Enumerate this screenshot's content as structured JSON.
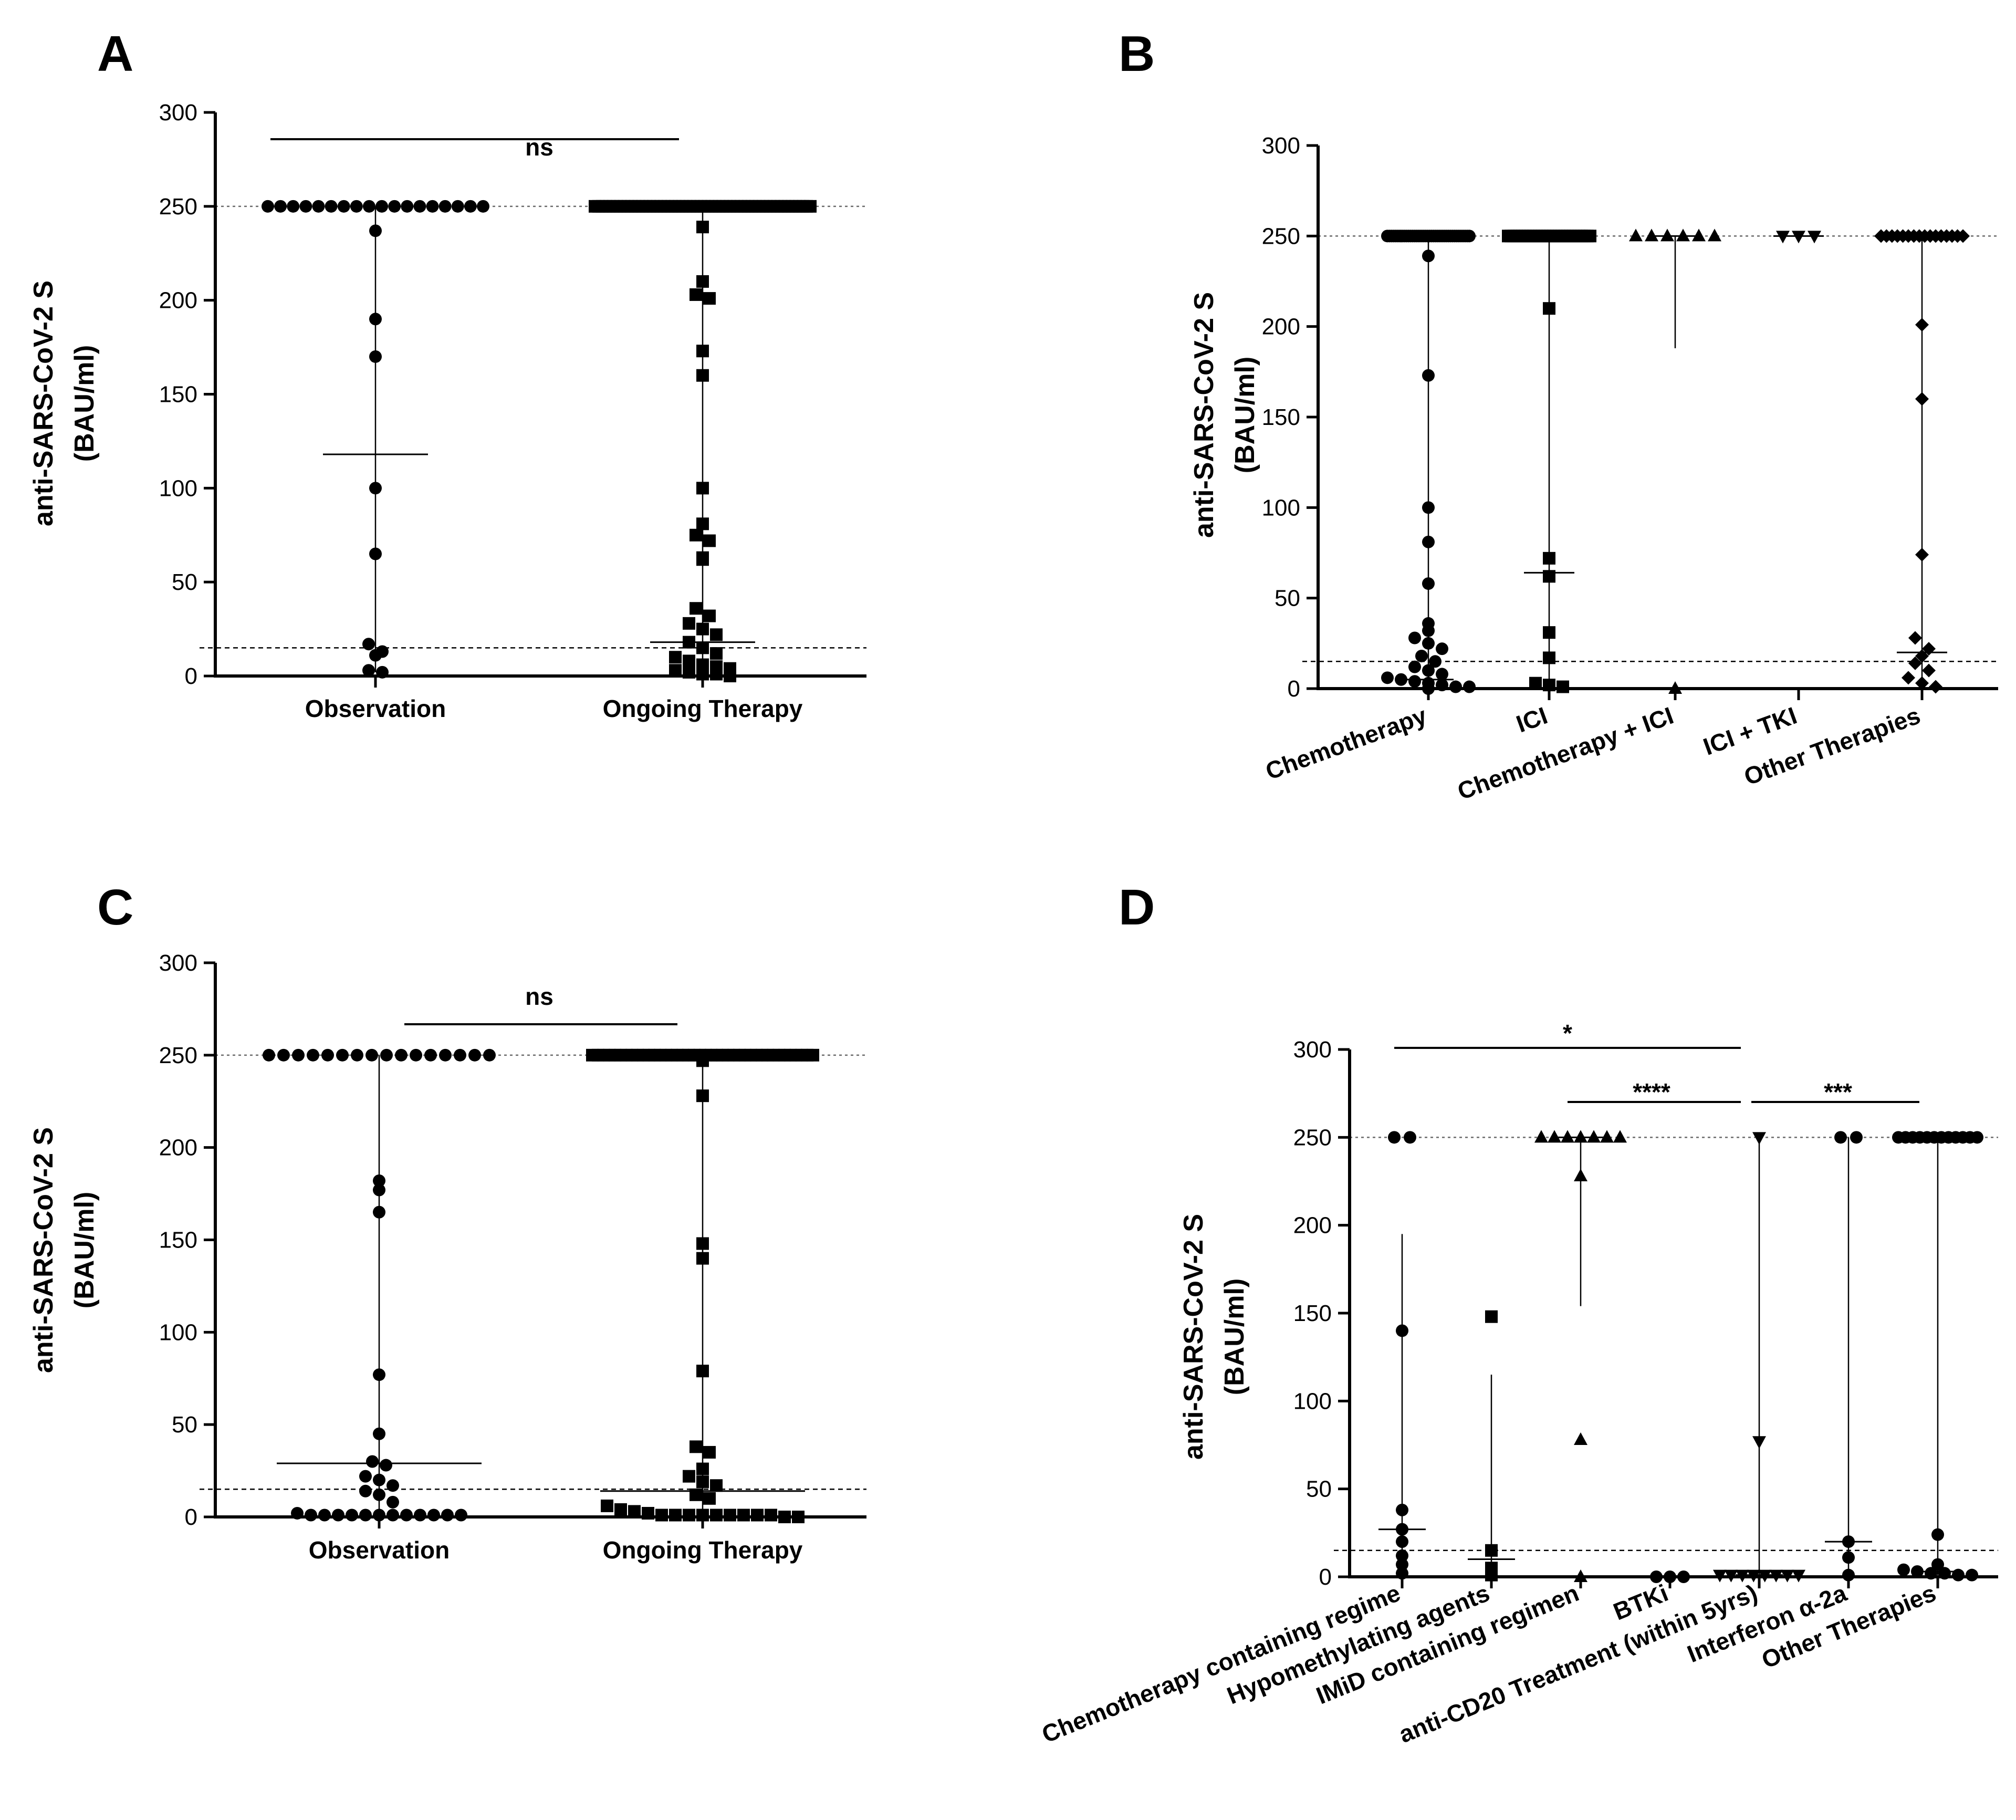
{
  "figure": {
    "colors": {
      "ink": "#000000",
      "refline": "#6a6a6a",
      "background": "#ffffff"
    }
  },
  "chart_data": [
    {
      "panel": "A",
      "type": "scatter",
      "ylabel_line1": "anti-SARS-CoV-2 S",
      "ylabel_line2": "(BAU/ml)",
      "ylim": [
        0,
        300
      ],
      "yticks": [
        0,
        50,
        100,
        150,
        200,
        250,
        300
      ],
      "ref_upper": 250,
      "ref_lower": 15,
      "categories": [
        "Observation",
        "Ongoing Therapy"
      ],
      "series": [
        {
          "name": "Observation",
          "marker": "circle",
          "values_at_250": 18,
          "other_values": [
            237,
            190,
            170,
            100,
            65,
            17,
            13,
            11,
            3,
            2
          ],
          "median": 118,
          "whisker": [
            2,
            250
          ]
        },
        {
          "name": "Ongoing Therapy",
          "marker": "square",
          "values_at_250": 60,
          "other_values": [
            239,
            210,
            203,
            201,
            173,
            160,
            100,
            81,
            75,
            72,
            63,
            62,
            36,
            32,
            28,
            25,
            22,
            18,
            15,
            12,
            10,
            8,
            6,
            5,
            4,
            3,
            2,
            1,
            1,
            0
          ],
          "median": 18,
          "whisker": [
            0,
            250
          ]
        }
      ],
      "significance": [
        {
          "from": "Observation",
          "to": "Ongoing Therapy",
          "label": "ns",
          "y": 268
        }
      ]
    },
    {
      "panel": "B",
      "type": "scatter",
      "ylabel_line1": "anti-SARS-CoV-2 S",
      "ylabel_line2": "(BAU/ml)",
      "ylim": [
        0,
        300
      ],
      "yticks": [
        0,
        50,
        100,
        150,
        200,
        250,
        300
      ],
      "ref_upper": 250,
      "ref_lower": 15,
      "categories": [
        "Chemotherapy",
        "ICI",
        "Chemotherapy + ICI",
        "ICI + TKI",
        "Other Therapies"
      ],
      "series": [
        {
          "name": "Chemotherapy",
          "marker": "circle",
          "values_at_250": 40,
          "other_values": [
            239,
            173,
            100,
            81,
            58,
            36,
            32,
            28,
            25,
            22,
            18,
            15,
            12,
            10,
            8,
            6,
            5,
            4,
            3,
            2,
            1,
            1,
            0
          ],
          "median": 5,
          "whisker": [
            0,
            250
          ]
        },
        {
          "name": "ICI",
          "marker": "square",
          "values_at_250": 30,
          "other_values": [
            210,
            72,
            62,
            31,
            17,
            3,
            2,
            1
          ],
          "median": 64,
          "whisker": [
            0,
            250
          ]
        },
        {
          "name": "Chemotherapy + ICI",
          "marker": "triangle-up",
          "values_at_250": 6,
          "other_values": [
            0
          ],
          "median": 250,
          "whisker": [
            188,
            250
          ]
        },
        {
          "name": "ICI + TKI",
          "marker": "triangle-down",
          "values_at_250": 3,
          "other_values": [],
          "median": 250,
          "whisker": [
            250,
            250
          ]
        },
        {
          "name": "Other Therapies",
          "marker": "diamond",
          "values_at_250": 16,
          "other_values": [
            201,
            160,
            74,
            28,
            22,
            18,
            14,
            10,
            6,
            3,
            1
          ],
          "median": 20,
          "whisker": [
            1,
            250
          ]
        }
      ]
    },
    {
      "panel": "C",
      "type": "scatter",
      "ylabel_line1": "anti-SARS-CoV-2 S",
      "ylabel_line2": "(BAU/ml)",
      "ylim": [
        0,
        300
      ],
      "yticks": [
        0,
        50,
        100,
        150,
        200,
        250,
        300
      ],
      "ref_upper": 250,
      "ref_lower": 15,
      "categories": [
        "Observation",
        "Ongoing Therapy"
      ],
      "series": [
        {
          "name": "Observation",
          "marker": "circle",
          "values_at_250": 16,
          "other_values": [
            182,
            177,
            165,
            77,
            45,
            30,
            28,
            22,
            20,
            17,
            14,
            12,
            8,
            2,
            1,
            1,
            1,
            1,
            1,
            1,
            1,
            1,
            1,
            1,
            1,
            1
          ],
          "median": 29,
          "whisker": [
            0,
            250
          ]
        },
        {
          "name": "Ongoing Therapy",
          "marker": "square",
          "values_at_250": 40,
          "other_values": [
            247,
            228,
            148,
            140,
            79,
            38,
            35,
            26,
            22,
            19,
            17,
            12,
            10,
            6,
            4,
            3,
            2,
            1,
            1,
            1,
            1,
            1,
            1,
            1,
            1,
            1,
            0,
            0
          ],
          "median": 14,
          "whisker": [
            0,
            250
          ]
        }
      ],
      "significance": [
        {
          "from": "Observation",
          "to": "Ongoing Therapy",
          "label": "ns",
          "y": 268
        }
      ]
    },
    {
      "panel": "D",
      "type": "scatter",
      "ylabel_line1": "anti-SARS-CoV-2 S",
      "ylabel_line2": "(BAU/ml)",
      "ylim": [
        0,
        300
      ],
      "yticks": [
        0,
        50,
        100,
        150,
        200,
        250,
        300
      ],
      "ref_upper": 250,
      "ref_lower": 15,
      "categories": [
        "Chemotherapy containing regime",
        "Hypomethylating agents",
        "IMiD containing regimen",
        "BTKi",
        "anti-CD20 Treatment (within 5yrs)",
        "Interferon α-2a",
        "Other Therapies"
      ],
      "series": [
        {
          "name": "Chemotherapy containing regime",
          "marker": "circle",
          "values_at_250": 2,
          "other_values": [
            140,
            38,
            27,
            20,
            12,
            7,
            2
          ],
          "median": 27,
          "whisker": [
            6,
            195
          ]
        },
        {
          "name": "Hypomethylating agents",
          "marker": "square",
          "values_at_250": 0,
          "other_values": [
            148,
            15,
            5,
            1
          ],
          "median": 10,
          "whisker": [
            1,
            115
          ]
        },
        {
          "name": "IMiD containing regimen",
          "marker": "triangle-up",
          "values_at_250": 7,
          "other_values": [
            228,
            78,
            0
          ],
          "median": 250,
          "whisker": [
            154,
            250
          ]
        },
        {
          "name": "BTKi",
          "marker": "circle",
          "values_at_250": 0,
          "other_values": [
            0,
            0,
            0
          ],
          "median": 0,
          "whisker": [
            0,
            0
          ]
        },
        {
          "name": "anti-CD20 Treatment (within 5yrs)",
          "marker": "triangle-down",
          "values_at_250": 1,
          "other_values": [
            77,
            1,
            1,
            1,
            1,
            1,
            1,
            1,
            1
          ],
          "median": 1,
          "whisker": [
            0,
            250
          ]
        },
        {
          "name": "Interferon α-2a",
          "marker": "circle",
          "values_at_250": 2,
          "other_values": [
            20,
            11,
            1
          ],
          "median": 20,
          "whisker": [
            1,
            250
          ]
        },
        {
          "name": "Other Therapies",
          "marker": "circle",
          "values_at_250": 12,
          "other_values": [
            24,
            7,
            4,
            3,
            2,
            2,
            1,
            1
          ],
          "median": 3,
          "whisker": [
            1,
            250
          ]
        }
      ],
      "significance": [
        {
          "from": "Chemotherapy containing regime",
          "to": "anti-CD20 Treatment (within 5yrs)",
          "label": "*",
          "y": 290
        },
        {
          "from": "IMiD containing regimen",
          "to": "anti-CD20 Treatment (within 5yrs)",
          "label": "****",
          "y": 265
        },
        {
          "from": "anti-CD20 Treatment (within 5yrs)",
          "to": "Other Therapies",
          "label": "***",
          "y": 265
        }
      ]
    }
  ]
}
